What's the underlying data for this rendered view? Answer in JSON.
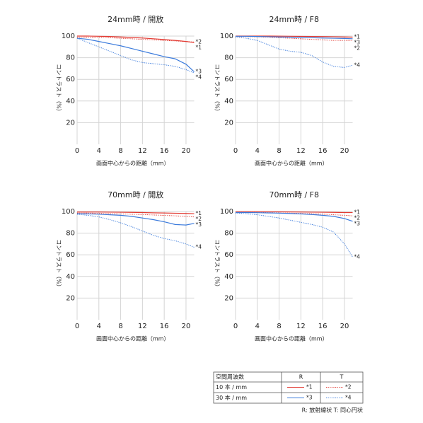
{
  "chart_data": [
    {
      "type": "line",
      "title": "24mm時 / 開放",
      "x_label": "画面中心からの距離（mm）",
      "y_label": "コントラスト（%）",
      "x": [
        0,
        2,
        4,
        6,
        8,
        10,
        12,
        14,
        16,
        18,
        20,
        21.5
      ],
      "xlim": [
        0,
        21.5
      ],
      "ylim": [
        0,
        100
      ],
      "xticks": [
        0,
        4,
        8,
        12,
        16,
        20
      ],
      "yticks": [
        20,
        40,
        60,
        80,
        100
      ],
      "grid": true,
      "series": [
        {
          "name": "*1",
          "color": "#e23a32",
          "line_style": "solid",
          "values": [
            100,
            100,
            99.8,
            99.6,
            99.2,
            98.8,
            98.2,
            97.5,
            96.8,
            96,
            95,
            94
          ]
        },
        {
          "name": "*2",
          "color": "#e23a32",
          "line_style": "dotted",
          "values": [
            99,
            99,
            98.8,
            98.5,
            98,
            97.5,
            97,
            96.5,
            96,
            95.5,
            95,
            94.5
          ]
        },
        {
          "name": "*3",
          "color": "#3b7bdc",
          "line_style": "solid",
          "values": [
            98,
            97,
            95,
            93,
            91,
            88.5,
            86,
            83.5,
            81,
            79,
            74,
            67
          ]
        },
        {
          "name": "*4",
          "color": "#3b7bdc",
          "line_style": "dotted",
          "values": [
            98,
            94,
            90,
            86,
            82,
            78,
            75.5,
            74.5,
            73.5,
            72,
            69,
            66
          ]
        }
      ]
    },
    {
      "type": "line",
      "title": "24mm時 / F8",
      "x_label": "画面中心からの距離（mm）",
      "y_label": "コントラスト（%）",
      "x": [
        0,
        2,
        4,
        6,
        8,
        10,
        12,
        14,
        16,
        18,
        20,
        21.5
      ],
      "xlim": [
        0,
        21.5
      ],
      "ylim": [
        0,
        100
      ],
      "xticks": [
        0,
        4,
        8,
        12,
        16,
        20
      ],
      "yticks": [
        20,
        40,
        60,
        80,
        100
      ],
      "grid": true,
      "series": [
        {
          "name": "*1",
          "color": "#e23a32",
          "line_style": "solid",
          "values": [
            100,
            100,
            100,
            100,
            99.9,
            99.8,
            99.7,
            99.6,
            99.5,
            99.4,
            99.2,
            99
          ]
        },
        {
          "name": "*2",
          "color": "#e23a32",
          "line_style": "dotted",
          "values": [
            99.5,
            99.5,
            99.3,
            99,
            98.5,
            98,
            97.5,
            97,
            96.5,
            96,
            96,
            96
          ]
        },
        {
          "name": "*3",
          "color": "#3b7bdc",
          "line_style": "solid",
          "values": [
            99.8,
            99.8,
            99.6,
            99.4,
            99.2,
            99,
            98.8,
            98.5,
            98.2,
            98,
            97.8,
            97.5
          ]
        },
        {
          "name": "*4",
          "color": "#3b7bdc",
          "line_style": "dotted",
          "values": [
            99,
            98,
            96,
            92,
            88,
            86,
            85,
            82,
            76,
            72,
            71,
            73
          ]
        }
      ]
    },
    {
      "type": "line",
      "title": "70mm時 / 開放",
      "x_label": "画面中心からの距離（mm）",
      "y_label": "コントラスト（%）",
      "x": [
        0,
        2,
        4,
        6,
        8,
        10,
        12,
        14,
        16,
        18,
        20,
        21.5
      ],
      "xlim": [
        0,
        21.5
      ],
      "ylim": [
        0,
        100
      ],
      "xticks": [
        0,
        4,
        8,
        12,
        16,
        20
      ],
      "yticks": [
        20,
        40,
        60,
        80,
        100
      ],
      "grid": true,
      "series": [
        {
          "name": "*1",
          "color": "#e23a32",
          "line_style": "solid",
          "values": [
            99.5,
            99.5,
            99.5,
            99.4,
            99.3,
            99.2,
            99,
            98.8,
            98.6,
            98.4,
            98.2,
            98
          ]
        },
        {
          "name": "*2",
          "color": "#e23a32",
          "line_style": "dotted",
          "values": [
            98.5,
            98.5,
            98.3,
            98,
            97.8,
            97.5,
            97.2,
            96.8,
            96.4,
            96,
            95.5,
            95
          ]
        },
        {
          "name": "*3",
          "color": "#3b7bdc",
          "line_style": "solid",
          "values": [
            98,
            97.8,
            97.5,
            97,
            96.5,
            95.5,
            94,
            92.5,
            90.5,
            88,
            87.5,
            89
          ]
        },
        {
          "name": "*4",
          "color": "#3b7bdc",
          "line_style": "dotted",
          "values": [
            97.5,
            96.5,
            95,
            92.5,
            89.5,
            86,
            82,
            78,
            75,
            73,
            70,
            67
          ]
        }
      ]
    },
    {
      "type": "line",
      "title": "70mm時 / F8",
      "x_label": "画面中心からの距離（mm）",
      "y_label": "コントラスト（%）",
      "x": [
        0,
        2,
        4,
        6,
        8,
        10,
        12,
        14,
        16,
        18,
        20,
        21.5
      ],
      "xlim": [
        0,
        21.5
      ],
      "ylim": [
        0,
        100
      ],
      "xticks": [
        0,
        4,
        8,
        12,
        16,
        20
      ],
      "yticks": [
        20,
        40,
        60,
        80,
        100
      ],
      "grid": true,
      "series": [
        {
          "name": "*1",
          "color": "#e23a32",
          "line_style": "solid",
          "values": [
            99.8,
            99.8,
            99.8,
            99.8,
            99.7,
            99.6,
            99.5,
            99.4,
            99.3,
            99.2,
            99,
            99
          ]
        },
        {
          "name": "*2",
          "color": "#e23a32",
          "line_style": "dotted",
          "values": [
            99.3,
            99.3,
            99.2,
            99,
            98.8,
            98.5,
            98.2,
            98,
            97.6,
            97,
            96.5,
            96
          ]
        },
        {
          "name": "*3",
          "color": "#3b7bdc",
          "line_style": "solid",
          "values": [
            99,
            99,
            98.9,
            98.7,
            98.5,
            98.2,
            97.8,
            97.2,
            96.5,
            95.5,
            93.5,
            91
          ]
        },
        {
          "name": "*4",
          "color": "#3b7bdc",
          "line_style": "dotted",
          "values": [
            98.5,
            98,
            97,
            95.5,
            94,
            92,
            90,
            88,
            85.5,
            81,
            70,
            58
          ]
        }
      ]
    }
  ],
  "legend_table": {
    "header": [
      "空間周波数",
      "R",
      "T"
    ],
    "rows": [
      [
        "10 本 / mm",
        "*1",
        "*2"
      ],
      [
        "30 本 / mm",
        "*3",
        "*4"
      ]
    ],
    "note": "R: 放射線状  T: 同心円状"
  }
}
